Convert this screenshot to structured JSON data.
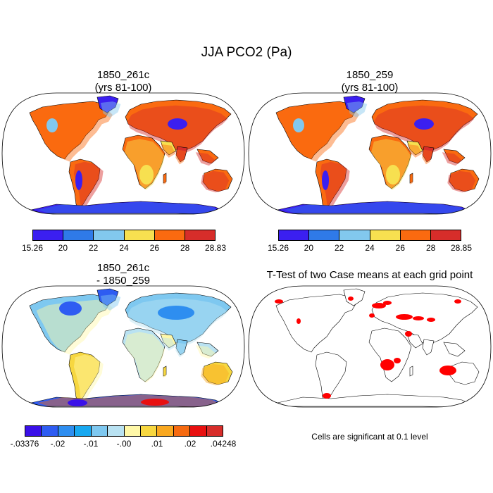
{
  "title": "JJA PCO2 (Pa)",
  "panels": [
    {
      "id": "p1",
      "title_line1": "1850_261c",
      "title_line2": "(yrs 81-100)",
      "kind": "field",
      "colorbar": {
        "colors": [
          "#3b1ff0",
          "#2f7ae8",
          "#82c8ee",
          "#f7e050",
          "#fa6a10",
          "#d72d2a"
        ],
        "labels": [
          "15.26",
          "20",
          "22",
          "24",
          "26",
          "28",
          "28.83"
        ]
      }
    },
    {
      "id": "p2",
      "title_line1": "1850_259",
      "title_line2": "(yrs 81-100)",
      "kind": "field",
      "colorbar": {
        "colors": [
          "#3b1ff0",
          "#2f7ae8",
          "#82c8ee",
          "#f7e050",
          "#fa6a10",
          "#d72d2a"
        ],
        "labels": [
          "15.26",
          "20",
          "22",
          "24",
          "26",
          "28",
          "28.85"
        ]
      }
    },
    {
      "id": "p3",
      "title_line1": "1850_261c",
      "title_line2": "- 1850_259",
      "kind": "difference",
      "colorbar": {
        "colors": [
          "#3a10e8",
          "#2e5cf2",
          "#2e8ef0",
          "#18a8f0",
          "#7ec8f0",
          "#b9e2f2",
          "#fff8a8",
          "#f7d740",
          "#f9a820",
          "#f66a10",
          "#e81010",
          "#d72d2a"
        ],
        "labels": [
          "-.03376",
          "-.02",
          "-.01",
          "-.00",
          ".01",
          ".02",
          ".04248"
        ]
      }
    },
    {
      "id": "p4",
      "title_line1": "T-Test of two Case means at each grid point",
      "title_line2": "",
      "kind": "ttest",
      "note": "Cells are significant at 0.1 level"
    }
  ]
}
